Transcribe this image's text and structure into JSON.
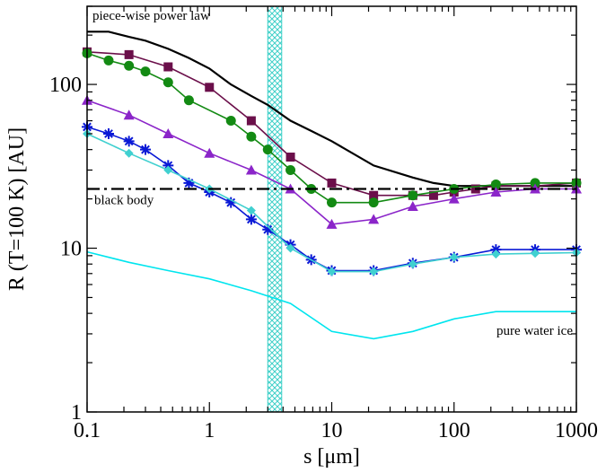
{
  "chart_data": {
    "type": "line",
    "xlabel": "s [μm]",
    "ylabel": "R (T=100 K)  [AU]",
    "xscale": "log",
    "yscale": "log",
    "xlim": [
      0.1,
      1000
    ],
    "ylim": [
      1,
      300
    ],
    "grid": false,
    "legend": "none",
    "x_ticks": [
      {
        "value": 0.1,
        "label": "0.1"
      },
      {
        "value": 1,
        "label": "1"
      },
      {
        "value": 10,
        "label": "10"
      },
      {
        "value": 100,
        "label": "100"
      },
      {
        "value": 1000,
        "label": "1000"
      }
    ],
    "y_ticks": [
      {
        "value": 1,
        "label": "1"
      },
      {
        "value": 10,
        "label": "10"
      },
      {
        "value": 100,
        "label": "100"
      }
    ],
    "band": {
      "x": [
        3.0,
        3.9
      ],
      "color": "#3fd0c8"
    },
    "black_body_r": 23,
    "annotations": {
      "power_law": "piece-wise power law",
      "black_body": "black body",
      "water_ice": "pure water ice"
    },
    "series": [
      {
        "color": "#000000",
        "marker": "none",
        "x": [
          0.1,
          0.15,
          0.22,
          0.3,
          0.46,
          0.68,
          1,
          1.5,
          2.2,
          3,
          4.6,
          6.8,
          10,
          22,
          46,
          68,
          100,
          150,
          220,
          460,
          1000
        ],
        "y": [
          210,
          210,
          195,
          185,
          165,
          145,
          125,
          100,
          85,
          75,
          60,
          52,
          45,
          32,
          27,
          25,
          24,
          24,
          24,
          24,
          24
        ]
      },
      {
        "color": "#6b0f4a",
        "marker": "square",
        "x": [
          0.1,
          0.22,
          0.46,
          1,
          2.2,
          4.6,
          10,
          22,
          46,
          68,
          100,
          150,
          220,
          460,
          1000
        ],
        "y": [
          158,
          152,
          128,
          96,
          60,
          36,
          25,
          21,
          21,
          21,
          22,
          23,
          24,
          24,
          25
        ]
      },
      {
        "color": "#138a13",
        "marker": "circle",
        "x": [
          0.1,
          0.15,
          0.22,
          0.3,
          0.46,
          0.68,
          1.5,
          2.2,
          3,
          4.6,
          6.8,
          10,
          22,
          46,
          100,
          220,
          460,
          1000
        ],
        "y": [
          155,
          140,
          130,
          120,
          103,
          80,
          60,
          48,
          40,
          30,
          23,
          19,
          19,
          21,
          23,
          24.5,
          25,
          25
        ]
      },
      {
        "color": "#8b25c9",
        "marker": "triangle",
        "x": [
          0.1,
          0.22,
          0.46,
          1,
          2.2,
          4.6,
          10,
          22,
          46,
          100,
          220,
          460,
          1000
        ],
        "y": [
          80,
          65,
          50,
          38,
          30,
          23,
          14,
          15,
          18,
          20,
          22,
          23,
          23
        ]
      },
      {
        "color": "#0a19d6",
        "marker": "asterisk",
        "x": [
          0.1,
          0.15,
          0.22,
          0.3,
          0.46,
          0.68,
          1,
          1.5,
          2.2,
          3,
          4.6,
          6.8,
          10,
          22,
          46,
          100,
          220,
          460,
          1000
        ],
        "y": [
          55,
          50,
          45,
          40,
          32,
          25,
          22,
          19,
          15,
          13,
          10.5,
          8.5,
          7.3,
          7.3,
          8.1,
          8.8,
          9.8,
          9.8,
          9.8
        ]
      },
      {
        "color": "#40d0d0",
        "marker": "diamond",
        "x": [
          0.1,
          0.22,
          0.46,
          1,
          2.2,
          4.6,
          10,
          22,
          46,
          100,
          220,
          460,
          1000
        ],
        "y": [
          50,
          38,
          30,
          23,
          17,
          10,
          7.2,
          7.2,
          8,
          8.8,
          9.2,
          9.3,
          9.4
        ]
      },
      {
        "color": "#00e5ee",
        "marker": "none",
        "x": [
          0.1,
          0.22,
          0.46,
          1,
          2.2,
          4.6,
          10,
          22,
          46,
          100,
          220,
          460,
          1000
        ],
        "y": [
          9.5,
          8.2,
          7.3,
          6.5,
          5.5,
          4.6,
          3.1,
          2.8,
          3.1,
          3.7,
          4.1,
          4.1,
          4.1
        ]
      }
    ]
  }
}
